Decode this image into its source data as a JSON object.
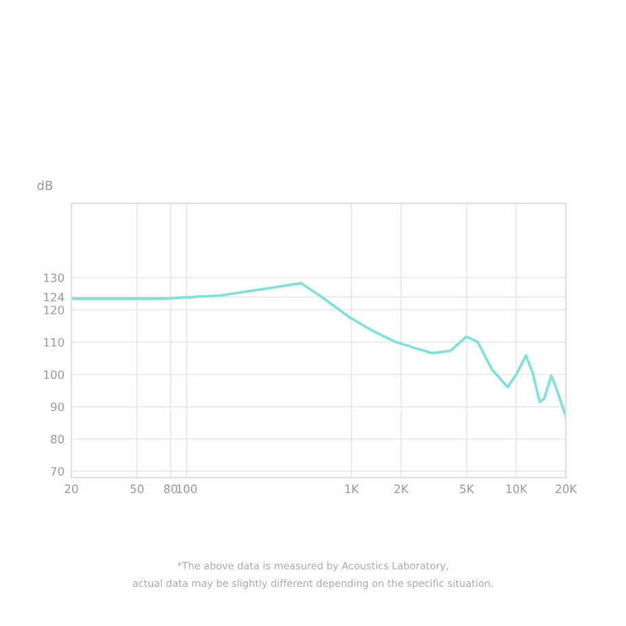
{
  "chart_data": {
    "type": "line",
    "ylabel": "dB",
    "x": [
      20,
      74.5,
      161,
      268,
      494,
      660,
      968,
      1336,
      1841,
      3075,
      3975,
      4977,
      5838,
      7077,
      8860,
      10070,
      11450,
      12600,
      13880,
      14800,
      16290,
      17380,
      20000
    ],
    "series": [
      {
        "color": "#7fe3dc",
        "values": [
          123.5,
          123.5,
          124.5,
          126.2,
          128.3,
          124,
          117.8,
          113.6,
          110.1,
          106.6,
          107.3,
          111.7,
          110.1,
          101.7,
          96.1,
          100.3,
          105.9,
          100.3,
          91.5,
          92.6,
          99.6,
          96.1,
          87
        ]
      }
    ],
    "log": "x",
    "xlim": [
      20,
      20000
    ],
    "xticks": [
      20,
      50,
      80,
      100,
      {
        "value": 1000,
        "label": "1K"
      },
      {
        "value": 2000,
        "label": "2K"
      },
      {
        "value": 5000,
        "label": "5K"
      },
      {
        "value": 10000,
        "label": "10K"
      },
      {
        "value": 20000,
        "label": "20K"
      }
    ],
    "ylim": [
      68,
      153
    ],
    "yticks": [
      70,
      80,
      90,
      100,
      110,
      120,
      124,
      130
    ],
    "grid": true,
    "marker": "none",
    "line_style": "solid",
    "annotations": [
      "*The above data is measured by Acoustics Laboratory,",
      "actual data may be slightly different depending on the specific situation."
    ]
  }
}
